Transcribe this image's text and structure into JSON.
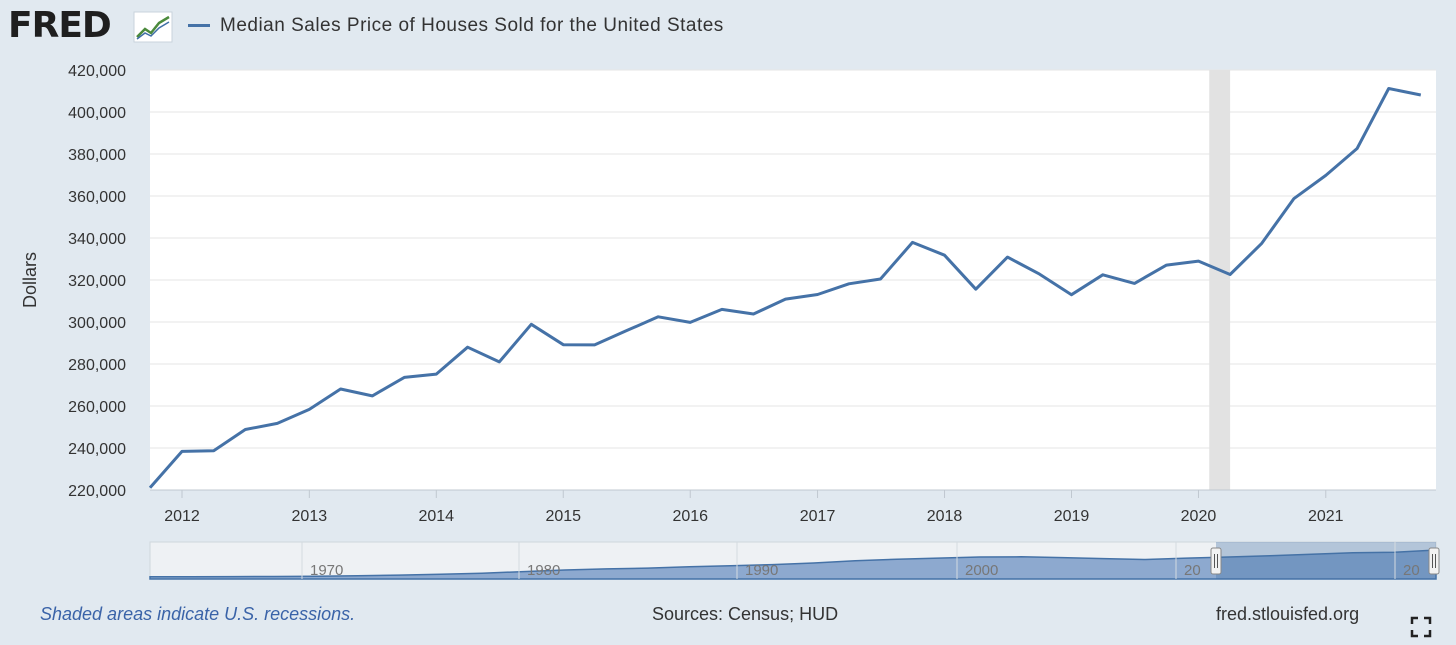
{
  "header": {
    "logo_text": "FRED",
    "logo_icon": "chart-trend-icon",
    "legend_label": "Median Sales Price of Houses Sold for the United States",
    "series_color": "#4572a7"
  },
  "chart_data": {
    "type": "line",
    "title": "",
    "xlabel": "",
    "ylabel": "Dollars",
    "ylim": [
      220000,
      420000
    ],
    "xlim": [
      "2011-10-01",
      "2021-10-01"
    ],
    "y_ticks": [
      220000,
      240000,
      260000,
      280000,
      300000,
      320000,
      340000,
      360000,
      380000,
      400000,
      420000
    ],
    "y_tick_labels": [
      "220,000",
      "240,000",
      "260,000",
      "280,000",
      "300,000",
      "320,000",
      "340,000",
      "360,000",
      "380,000",
      "400,000",
      "420,000"
    ],
    "x_ticks": [
      "2012-01-01",
      "2013-01-01",
      "2014-01-01",
      "2015-01-01",
      "2016-01-01",
      "2017-01-01",
      "2018-01-01",
      "2019-01-01",
      "2020-01-01",
      "2021-01-01"
    ],
    "x_tick_labels": [
      "2012",
      "2013",
      "2014",
      "2015",
      "2016",
      "2017",
      "2018",
      "2019",
      "2020",
      "2021"
    ],
    "grid": true,
    "recession": {
      "start": "2020-02-01",
      "end": "2020-04-01"
    },
    "series": [
      {
        "color": "#4572a7",
        "x": [
          "2011-10-01",
          "2012-01-01",
          "2012-04-01",
          "2012-07-01",
          "2012-10-01",
          "2013-01-01",
          "2013-04-01",
          "2013-07-01",
          "2013-10-01",
          "2014-01-01",
          "2014-04-01",
          "2014-07-01",
          "2014-10-01",
          "2015-01-01",
          "2015-04-01",
          "2015-07-01",
          "2015-10-01",
          "2016-01-01",
          "2016-04-01",
          "2016-07-01",
          "2016-10-01",
          "2017-01-01",
          "2017-04-01",
          "2017-07-01",
          "2017-10-01",
          "2018-01-01",
          "2018-04-01",
          "2018-07-01",
          "2018-10-01",
          "2019-01-01",
          "2019-04-01",
          "2019-07-01",
          "2019-10-01",
          "2020-01-01",
          "2020-04-01",
          "2020-07-01",
          "2020-10-01",
          "2021-01-01",
          "2021-04-01",
          "2021-07-01",
          "2021-10-01"
        ],
        "values": [
          221100,
          238400,
          238700,
          248800,
          251700,
          258400,
          268100,
          264800,
          273600,
          275200,
          288000,
          281000,
          298900,
          289200,
          289100,
          295800,
          302500,
          299800,
          306000,
          303800,
          310900,
          313100,
          318200,
          320500,
          337900,
          331800,
          315600,
          330900,
          322800,
          313000,
          322500,
          318400,
          327100,
          329000,
          322600,
          337500,
          358700,
          369800,
          382600,
          411200,
          408100
        ]
      }
    ]
  },
  "navigator": {
    "labels": [
      "1970",
      "1980",
      "1990",
      "2000",
      "20",
      "20"
    ],
    "shape": [
      0.01,
      0.01,
      0.015,
      0.02,
      0.03,
      0.045,
      0.07,
      0.1,
      0.14,
      0.2,
      0.26,
      0.3,
      0.33,
      0.38,
      0.42,
      0.46,
      0.52,
      0.6,
      0.66,
      0.7,
      0.74,
      0.75,
      0.72,
      0.68,
      0.65,
      0.7,
      0.74,
      0.79,
      0.84,
      0.9,
      0.92,
      1.0
    ]
  },
  "footer": {
    "note": "Shaded areas indicate U.S. recessions.",
    "sources": "Sources: Census; HUD",
    "site": "fred.stlouisfed.org"
  }
}
